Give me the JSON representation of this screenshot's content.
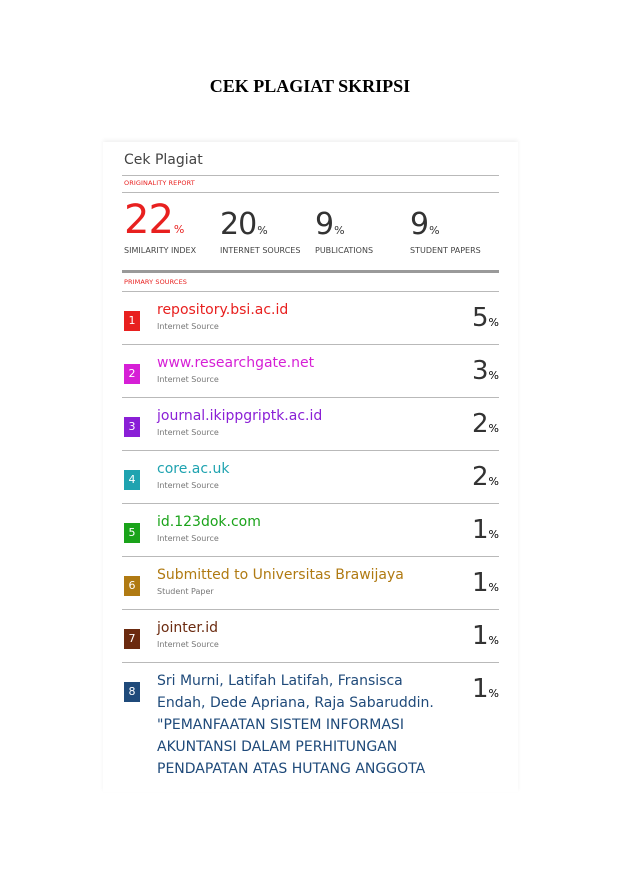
{
  "header": {
    "title": "CEK PLAGIAT SKRIPSI"
  },
  "report": {
    "title": "Cek Plagiat",
    "originality_heading": "ORIGINALITY REPORT",
    "stats": [
      {
        "value": 22,
        "unit": "%",
        "label": "SIMILARITY INDEX",
        "color": "#e8201f"
      },
      {
        "value": 20,
        "unit": "%",
        "label": "INTERNET SOURCES",
        "color": "#333333"
      },
      {
        "value": 9,
        "unit": "%",
        "label": "PUBLICATIONS",
        "color": "#333333"
      },
      {
        "value": 9,
        "unit": "%",
        "label": "STUDENT PAPERS",
        "color": "#333333"
      }
    ],
    "sources_heading": "PRIMARY SOURCES",
    "sources": [
      {
        "number": 1,
        "name": "repository.bsi.ac.id",
        "type": "Internet Source",
        "percent": 5,
        "unit": "%",
        "color": "#e8201f"
      },
      {
        "number": 2,
        "name": "www.researchgate.net",
        "type": "Internet Source",
        "percent": 3,
        "unit": "%",
        "color": "#d61fd6"
      },
      {
        "number": 3,
        "name": "journal.ikippgriptk.ac.id",
        "type": "Internet Source",
        "percent": 2,
        "unit": "%",
        "color": "#8a1fd6"
      },
      {
        "number": 4,
        "name": "core.ac.uk",
        "type": "Internet Source",
        "percent": 2,
        "unit": "%",
        "color": "#1fa3b0"
      },
      {
        "number": 5,
        "name": "id.123dok.com",
        "type": "Internet Source",
        "percent": 1,
        "unit": "%",
        "color": "#1aa31a"
      },
      {
        "number": 6,
        "name": "Submitted to Universitas Brawijaya",
        "type": "Student Paper",
        "percent": 1,
        "unit": "%",
        "color": "#b07a12"
      },
      {
        "number": 7,
        "name": "jointer.id",
        "type": "Internet Source",
        "percent": 1,
        "unit": "%",
        "color": "#6b2a0f"
      },
      {
        "number": 8,
        "name": "Sri Murni, Latifah Latifah, Fransisca Endah, Dede Apriana, Raja Sabaruddin. \"PEMANFAATAN SISTEM INFORMASI AKUNTANSI DALAM PERHITUNGAN PENDAPATAN ATAS HUTANG ANGGOTA",
        "percent": 1,
        "unit": "%",
        "color": "#1f4a7a"
      }
    ]
  }
}
